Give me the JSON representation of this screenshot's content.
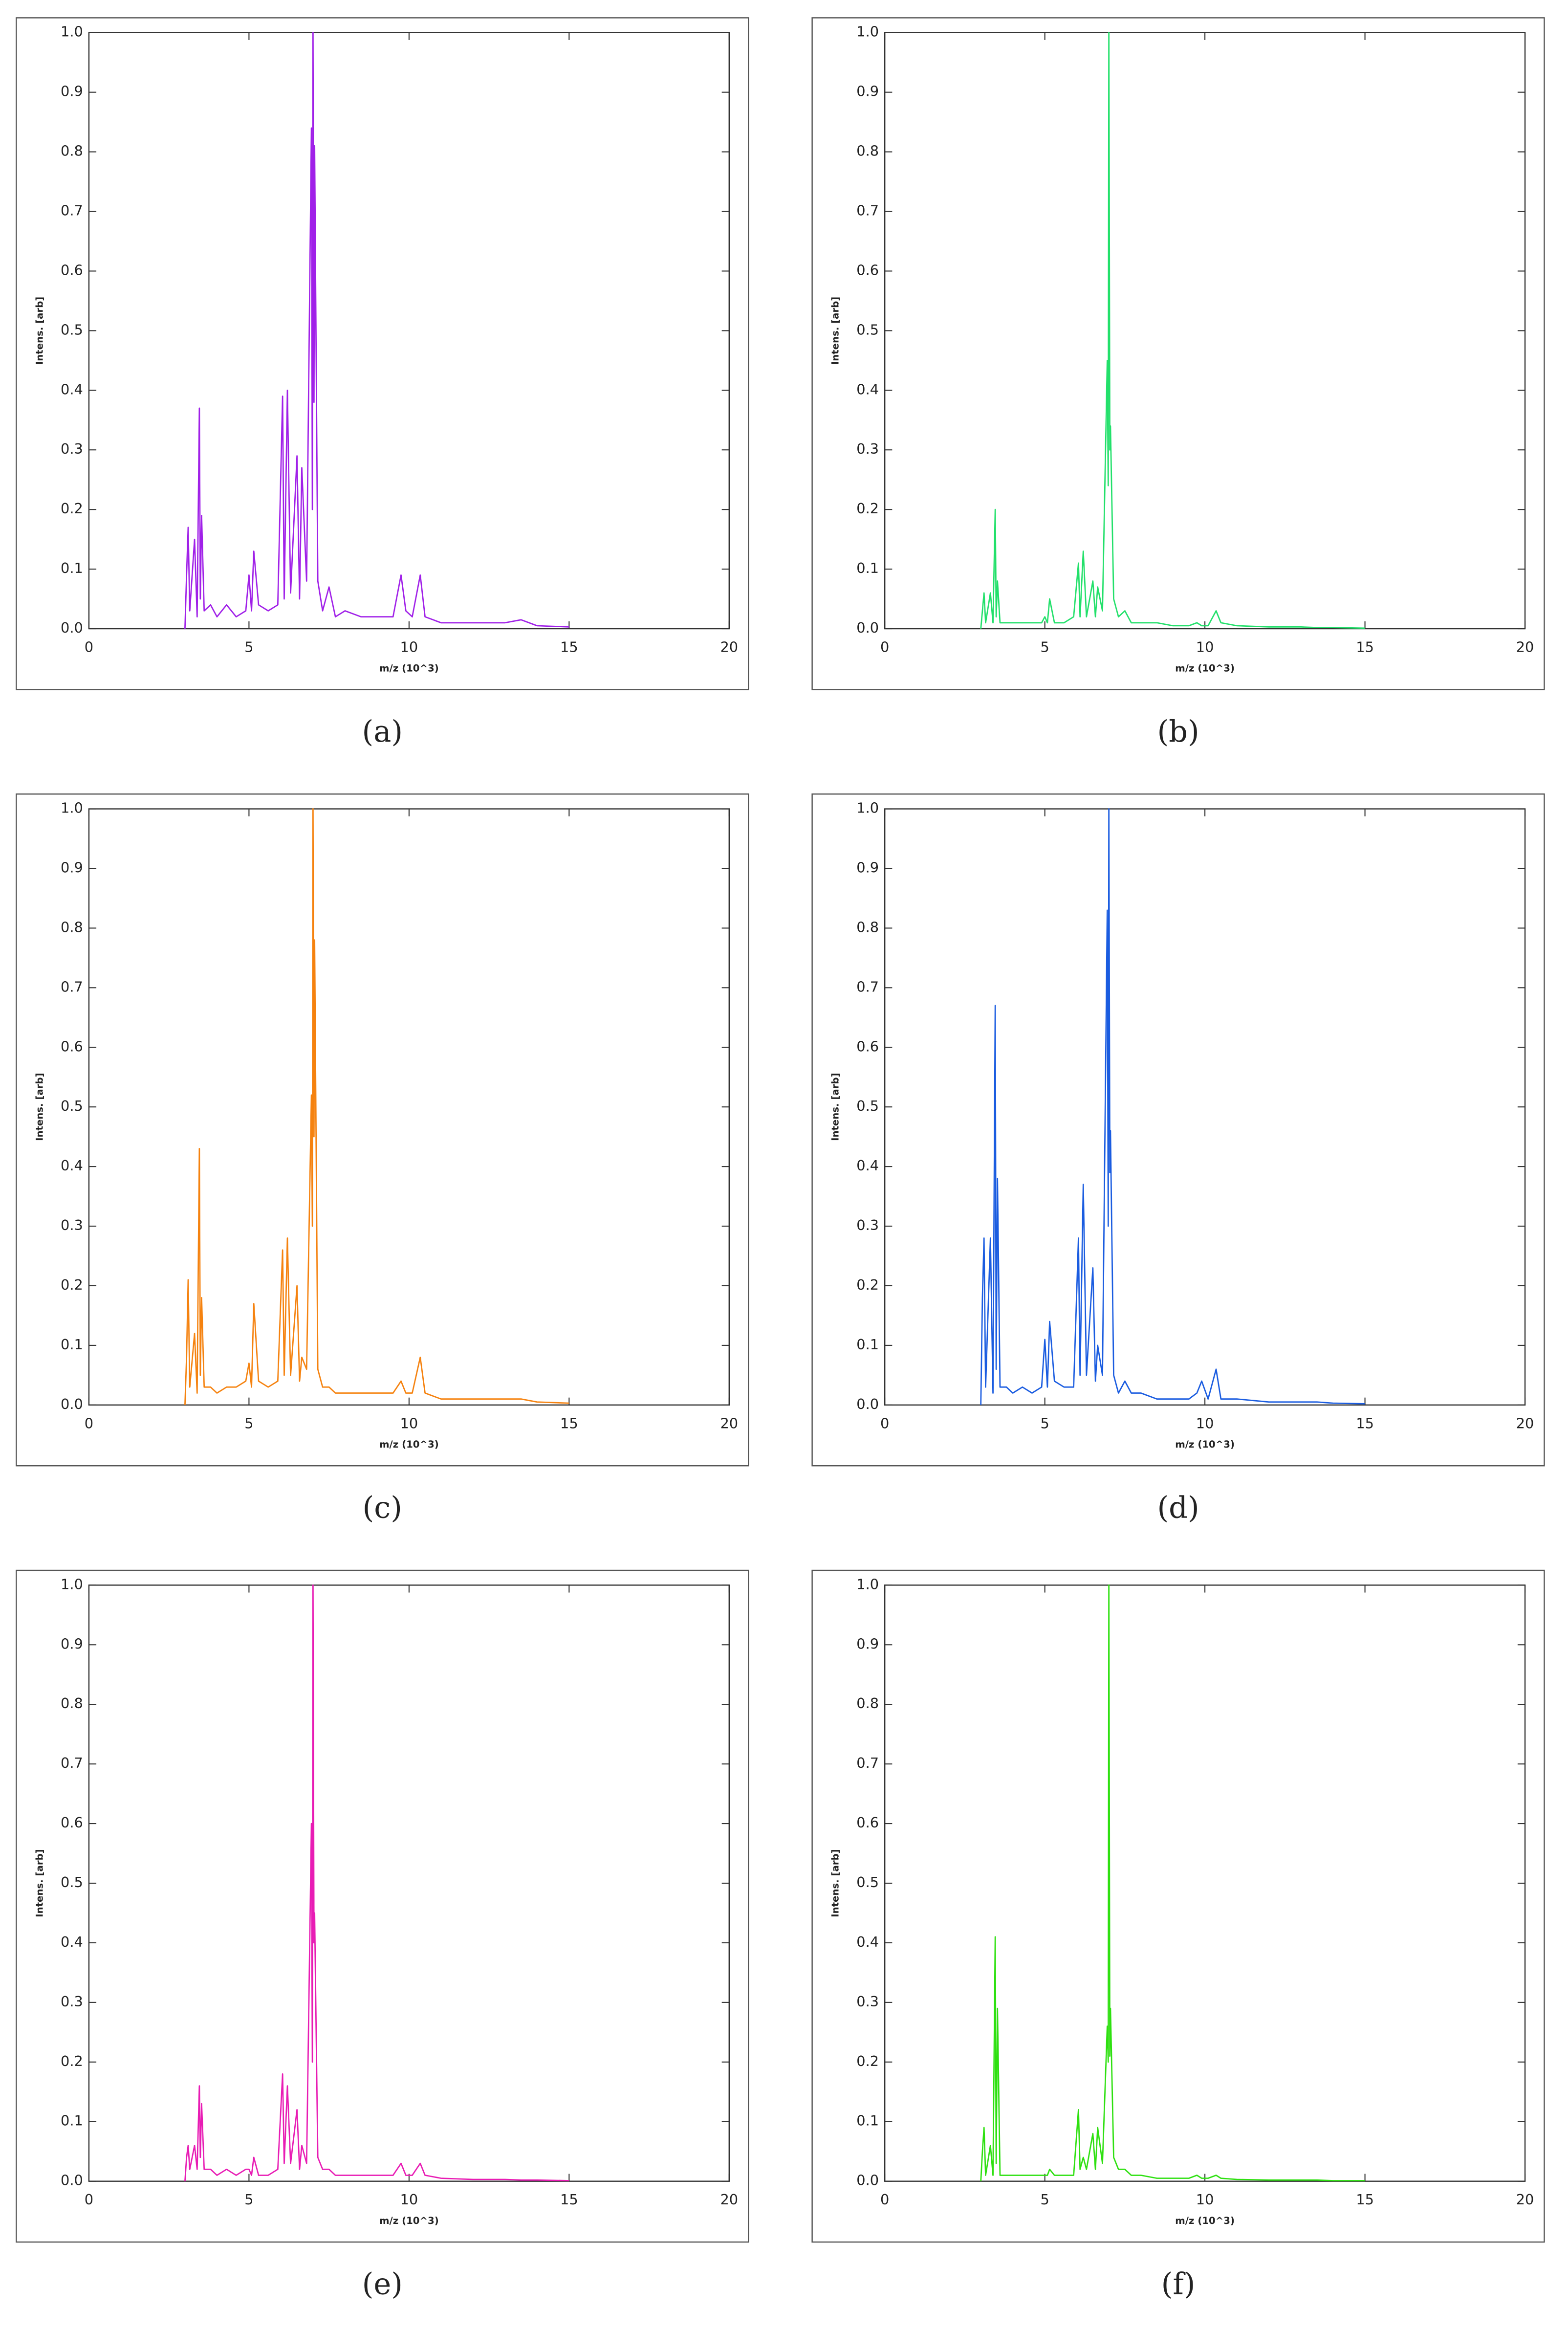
{
  "chart_data": [
    {
      "type": "line",
      "caption": "(a)",
      "xlabel": "m/z (10^3)",
      "ylabel": "Intens. [arb]",
      "color": "#a020e8",
      "x": [
        3.0,
        3.05,
        3.1,
        3.15,
        3.3,
        3.38,
        3.45,
        3.48,
        3.52,
        3.6,
        3.8,
        4.0,
        4.3,
        4.6,
        4.9,
        5.0,
        5.08,
        5.15,
        5.3,
        5.6,
        5.9,
        6.05,
        6.1,
        6.2,
        6.3,
        6.5,
        6.58,
        6.65,
        6.8,
        6.95,
        6.98,
        7.0,
        7.03,
        7.05,
        7.15,
        7.3,
        7.5,
        7.7,
        8.0,
        8.5,
        9.0,
        9.5,
        9.75,
        9.9,
        10.1,
        10.35,
        10.5,
        11,
        12,
        13,
        13.5,
        14,
        15
      ],
      "values": [
        0,
        0.09,
        0.17,
        0.03,
        0.15,
        0.02,
        0.37,
        0.05,
        0.19,
        0.03,
        0.04,
        0.02,
        0.04,
        0.02,
        0.03,
        0.09,
        0.03,
        0.13,
        0.04,
        0.03,
        0.04,
        0.39,
        0.05,
        0.4,
        0.06,
        0.29,
        0.05,
        0.27,
        0.08,
        0.84,
        0.2,
        1.0,
        0.38,
        0.81,
        0.08,
        0.03,
        0.07,
        0.02,
        0.03,
        0.02,
        0.02,
        0.02,
        0.09,
        0.03,
        0.02,
        0.09,
        0.02,
        0.01,
        0.01,
        0.01,
        0.015,
        0.005,
        0.003
      ],
      "xlim": [
        0,
        20
      ],
      "ylim": [
        0,
        1
      ],
      "xticks": [
        0,
        5,
        10,
        15,
        20
      ],
      "yticks": [
        {
          "value": 0,
          "label": "0.0"
        },
        {
          "value": 0.1,
          "label": "0.1"
        },
        {
          "value": 0.2,
          "label": "0.2"
        },
        {
          "value": 0.3,
          "label": "0.3"
        },
        {
          "value": 0.4,
          "label": "0.4"
        },
        {
          "value": 0.5,
          "label": "0.5"
        },
        {
          "value": 0.6,
          "label": "0.6"
        },
        {
          "value": 0.7,
          "label": "0.7"
        },
        {
          "value": 0.8,
          "label": "0.8"
        },
        {
          "value": 0.9,
          "label": "0.9"
        },
        {
          "value": 1,
          "label": "1.0"
        }
      ]
    },
    {
      "type": "line",
      "caption": "(b)",
      "xlabel": "m/z (10^3)",
      "ylabel": "Intens. [arb]",
      "color": "#22e06a",
      "x": [
        3.0,
        3.05,
        3.1,
        3.15,
        3.3,
        3.38,
        3.45,
        3.48,
        3.52,
        3.6,
        3.8,
        4.0,
        4.3,
        4.6,
        4.9,
        5.0,
        5.08,
        5.15,
        5.3,
        5.6,
        5.9,
        6.05,
        6.1,
        6.2,
        6.3,
        6.5,
        6.58,
        6.65,
        6.8,
        6.95,
        6.98,
        7.0,
        7.03,
        7.05,
        7.15,
        7.3,
        7.5,
        7.7,
        8.0,
        8.5,
        9.0,
        9.5,
        9.75,
        9.9,
        10.1,
        10.35,
        10.5,
        11,
        12,
        13,
        13.5,
        14,
        15
      ],
      "values": [
        0,
        0.03,
        0.06,
        0.01,
        0.06,
        0.01,
        0.2,
        0.02,
        0.08,
        0.01,
        0.01,
        0.01,
        0.01,
        0.01,
        0.01,
        0.02,
        0.01,
        0.05,
        0.01,
        0.01,
        0.02,
        0.11,
        0.02,
        0.13,
        0.02,
        0.08,
        0.02,
        0.07,
        0.03,
        0.45,
        0.24,
        1.0,
        0.3,
        0.34,
        0.05,
        0.02,
        0.03,
        0.01,
        0.01,
        0.01,
        0.005,
        0.005,
        0.01,
        0.005,
        0.005,
        0.03,
        0.01,
        0.005,
        0.003,
        0.003,
        0.002,
        0.002,
        0.001
      ],
      "xlim": [
        0,
        20
      ],
      "ylim": [
        0,
        1
      ],
      "xticks": [
        0,
        5,
        10,
        15,
        20
      ],
      "yticks": [
        {
          "value": 0,
          "label": "0.0"
        },
        {
          "value": 0.1,
          "label": "0.1"
        },
        {
          "value": 0.2,
          "label": "0.2"
        },
        {
          "value": 0.3,
          "label": "0.3"
        },
        {
          "value": 0.4,
          "label": "0.4"
        },
        {
          "value": 0.5,
          "label": "0.5"
        },
        {
          "value": 0.6,
          "label": "0.6"
        },
        {
          "value": 0.7,
          "label": "0.7"
        },
        {
          "value": 0.8,
          "label": "0.8"
        },
        {
          "value": 0.9,
          "label": "0.9"
        },
        {
          "value": 1,
          "label": "1.0"
        }
      ]
    },
    {
      "type": "line",
      "caption": "(c)",
      "xlabel": "m/z (10^3)",
      "ylabel": "Intens. [arb]",
      "color": "#f5820f",
      "x": [
        3.0,
        3.05,
        3.1,
        3.15,
        3.3,
        3.38,
        3.45,
        3.48,
        3.52,
        3.6,
        3.8,
        4.0,
        4.3,
        4.6,
        4.9,
        5.0,
        5.08,
        5.15,
        5.3,
        5.6,
        5.9,
        6.05,
        6.1,
        6.2,
        6.3,
        6.5,
        6.58,
        6.65,
        6.8,
        6.95,
        6.98,
        7.0,
        7.03,
        7.05,
        7.15,
        7.3,
        7.5,
        7.7,
        8.0,
        8.5,
        9.0,
        9.5,
        9.75,
        9.9,
        10.1,
        10.35,
        10.5,
        11,
        12,
        13,
        13.5,
        14,
        15
      ],
      "values": [
        0,
        0.08,
        0.21,
        0.03,
        0.12,
        0.02,
        0.43,
        0.05,
        0.18,
        0.03,
        0.03,
        0.02,
        0.03,
        0.03,
        0.04,
        0.07,
        0.03,
        0.17,
        0.04,
        0.03,
        0.04,
        0.26,
        0.05,
        0.28,
        0.05,
        0.2,
        0.04,
        0.08,
        0.06,
        0.52,
        0.3,
        1.0,
        0.45,
        0.78,
        0.06,
        0.03,
        0.03,
        0.02,
        0.02,
        0.02,
        0.02,
        0.02,
        0.04,
        0.02,
        0.02,
        0.08,
        0.02,
        0.01,
        0.01,
        0.01,
        0.01,
        0.005,
        0.003
      ],
      "xlim": [
        0,
        20
      ],
      "ylim": [
        0,
        1
      ],
      "xticks": [
        0,
        5,
        10,
        15,
        20
      ],
      "yticks": [
        {
          "value": 0,
          "label": "0.0"
        },
        {
          "value": 0.1,
          "label": "0.1"
        },
        {
          "value": 0.2,
          "label": "0.2"
        },
        {
          "value": 0.3,
          "label": "0.3"
        },
        {
          "value": 0.4,
          "label": "0.4"
        },
        {
          "value": 0.5,
          "label": "0.5"
        },
        {
          "value": 0.6,
          "label": "0.6"
        },
        {
          "value": 0.7,
          "label": "0.7"
        },
        {
          "value": 0.8,
          "label": "0.8"
        },
        {
          "value": 0.9,
          "label": "0.9"
        },
        {
          "value": 1,
          "label": "1.0"
        }
      ]
    },
    {
      "type": "line",
      "caption": "(d)",
      "xlabel": "m/z (10^3)",
      "ylabel": "Intens. [arb]",
      "color": "#1a5ce0",
      "x": [
        3.0,
        3.05,
        3.1,
        3.15,
        3.3,
        3.38,
        3.45,
        3.48,
        3.52,
        3.6,
        3.8,
        4.0,
        4.3,
        4.6,
        4.9,
        5.0,
        5.08,
        5.15,
        5.3,
        5.6,
        5.9,
        6.05,
        6.1,
        6.2,
        6.3,
        6.5,
        6.58,
        6.65,
        6.8,
        6.95,
        6.98,
        7.0,
        7.03,
        7.05,
        7.15,
        7.3,
        7.5,
        7.7,
        8.0,
        8.5,
        9.0,
        9.5,
        9.75,
        9.9,
        10.1,
        10.35,
        10.5,
        11,
        12,
        13,
        13.5,
        14,
        15
      ],
      "values": [
        0,
        0.18,
        0.28,
        0.03,
        0.28,
        0.02,
        0.67,
        0.06,
        0.38,
        0.03,
        0.03,
        0.02,
        0.03,
        0.02,
        0.03,
        0.11,
        0.03,
        0.14,
        0.04,
        0.03,
        0.03,
        0.28,
        0.05,
        0.37,
        0.05,
        0.23,
        0.04,
        0.1,
        0.05,
        0.83,
        0.3,
        1.0,
        0.39,
        0.46,
        0.05,
        0.02,
        0.04,
        0.02,
        0.02,
        0.01,
        0.01,
        0.01,
        0.02,
        0.04,
        0.01,
        0.06,
        0.01,
        0.01,
        0.005,
        0.005,
        0.005,
        0.003,
        0.002
      ],
      "xlim": [
        0,
        20
      ],
      "ylim": [
        0,
        1
      ],
      "xticks": [
        0,
        5,
        10,
        15,
        20
      ],
      "yticks": [
        {
          "value": 0,
          "label": "0.0"
        },
        {
          "value": 0.1,
          "label": "0.1"
        },
        {
          "value": 0.2,
          "label": "0.2"
        },
        {
          "value": 0.3,
          "label": "0.3"
        },
        {
          "value": 0.4,
          "label": "0.4"
        },
        {
          "value": 0.5,
          "label": "0.5"
        },
        {
          "value": 0.6,
          "label": "0.6"
        },
        {
          "value": 0.7,
          "label": "0.7"
        },
        {
          "value": 0.8,
          "label": "0.8"
        },
        {
          "value": 0.9,
          "label": "0.9"
        },
        {
          "value": 1,
          "label": "1.0"
        }
      ]
    },
    {
      "type": "line",
      "caption": "(e)",
      "xlabel": "m/z (10^3)",
      "ylabel": "Intens. [arb]",
      "color": "#e81cb4",
      "x": [
        3.0,
        3.05,
        3.1,
        3.15,
        3.3,
        3.38,
        3.45,
        3.48,
        3.52,
        3.6,
        3.8,
        4.0,
        4.3,
        4.6,
        4.9,
        5.0,
        5.08,
        5.15,
        5.3,
        5.6,
        5.9,
        6.05,
        6.1,
        6.2,
        6.3,
        6.5,
        6.58,
        6.65,
        6.8,
        6.95,
        6.98,
        7.0,
        7.03,
        7.05,
        7.15,
        7.3,
        7.5,
        7.7,
        8.0,
        8.5,
        9.0,
        9.5,
        9.75,
        9.9,
        10.1,
        10.35,
        10.5,
        11,
        12,
        13,
        13.5,
        14,
        15
      ],
      "values": [
        0,
        0.04,
        0.06,
        0.02,
        0.06,
        0.02,
        0.16,
        0.04,
        0.13,
        0.02,
        0.02,
        0.01,
        0.02,
        0.01,
        0.02,
        0.02,
        0.01,
        0.04,
        0.01,
        0.01,
        0.02,
        0.18,
        0.03,
        0.16,
        0.03,
        0.12,
        0.02,
        0.06,
        0.03,
        0.6,
        0.2,
        1.0,
        0.4,
        0.45,
        0.04,
        0.02,
        0.02,
        0.01,
        0.01,
        0.01,
        0.01,
        0.01,
        0.03,
        0.01,
        0.01,
        0.03,
        0.01,
        0.005,
        0.003,
        0.003,
        0.002,
        0.002,
        0.001
      ],
      "xlim": [
        0,
        20
      ],
      "ylim": [
        0,
        1
      ],
      "xticks": [
        0,
        5,
        10,
        15,
        20
      ],
      "yticks": [
        {
          "value": 0,
          "label": "0.0"
        },
        {
          "value": 0.1,
          "label": "0.1"
        },
        {
          "value": 0.2,
          "label": "0.2"
        },
        {
          "value": 0.3,
          "label": "0.3"
        },
        {
          "value": 0.4,
          "label": "0.4"
        },
        {
          "value": 0.5,
          "label": "0.5"
        },
        {
          "value": 0.6,
          "label": "0.6"
        },
        {
          "value": 0.7,
          "label": "0.7"
        },
        {
          "value": 0.8,
          "label": "0.8"
        },
        {
          "value": 0.9,
          "label": "0.9"
        },
        {
          "value": 1,
          "label": "1.0"
        }
      ]
    },
    {
      "type": "line",
      "caption": "(f)",
      "xlabel": "m/z (10^3)",
      "ylabel": "Intens. [arb]",
      "color": "#2ee010",
      "x": [
        3.0,
        3.05,
        3.1,
        3.15,
        3.3,
        3.38,
        3.45,
        3.48,
        3.52,
        3.6,
        3.8,
        4.0,
        4.3,
        4.6,
        4.9,
        5.0,
        5.08,
        5.15,
        5.3,
        5.6,
        5.9,
        6.05,
        6.1,
        6.2,
        6.3,
        6.5,
        6.58,
        6.65,
        6.8,
        6.95,
        6.98,
        7.0,
        7.03,
        7.05,
        7.15,
        7.3,
        7.5,
        7.7,
        8.0,
        8.5,
        9.0,
        9.5,
        9.75,
        9.9,
        10.1,
        10.35,
        10.5,
        11,
        12,
        13,
        13.5,
        14,
        15
      ],
      "values": [
        0,
        0.05,
        0.09,
        0.01,
        0.06,
        0.01,
        0.41,
        0.03,
        0.29,
        0.01,
        0.01,
        0.01,
        0.01,
        0.01,
        0.01,
        0.01,
        0.01,
        0.02,
        0.01,
        0.01,
        0.01,
        0.12,
        0.02,
        0.04,
        0.02,
        0.08,
        0.02,
        0.09,
        0.03,
        0.26,
        0.2,
        1.0,
        0.21,
        0.29,
        0.04,
        0.02,
        0.02,
        0.01,
        0.01,
        0.005,
        0.005,
        0.005,
        0.01,
        0.005,
        0.005,
        0.01,
        0.005,
        0.003,
        0.002,
        0.002,
        0.002,
        0.001,
        0.001
      ],
      "xlim": [
        0,
        20
      ],
      "ylim": [
        0,
        1
      ],
      "xticks": [
        0,
        5,
        10,
        15,
        20
      ],
      "yticks": [
        {
          "value": 0,
          "label": "0.0"
        },
        {
          "value": 0.1,
          "label": "0.1"
        },
        {
          "value": 0.2,
          "label": "0.2"
        },
        {
          "value": 0.3,
          "label": "0.3"
        },
        {
          "value": 0.4,
          "label": "0.4"
        },
        {
          "value": 0.5,
          "label": "0.5"
        },
        {
          "value": 0.6,
          "label": "0.6"
        },
        {
          "value": 0.7,
          "label": "0.7"
        },
        {
          "value": 0.8,
          "label": "0.8"
        },
        {
          "value": 0.9,
          "label": "0.9"
        },
        {
          "value": 1,
          "label": "1.0"
        }
      ]
    }
  ]
}
